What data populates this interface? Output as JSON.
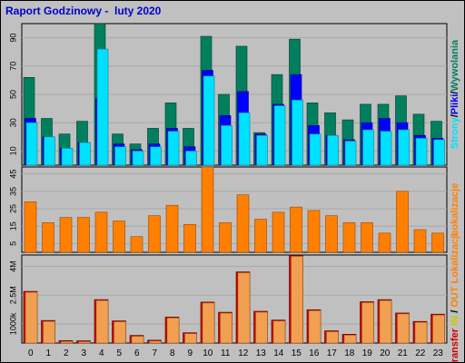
{
  "title": "Raport Godzinowy -  luty 2020",
  "colors": {
    "background": "#c0c0c0",
    "plot_bg": "#c0c0c0",
    "grid": "#a8a8a8",
    "strony": "#007f5f",
    "pliki": "#0000ff",
    "wywolania": "#00e0ff",
    "lokalizacje": "#ff8000",
    "transfer": "#cc0000",
    "transfer_light": "#f0a050",
    "title": "#0000cc"
  },
  "chart_data": [
    {
      "type": "bar",
      "categories": [
        "0",
        "1",
        "2",
        "3",
        "4",
        "5",
        "6",
        "7",
        "8",
        "9",
        "10",
        "11",
        "12",
        "13",
        "14",
        "15",
        "16",
        "17",
        "18",
        "19",
        "20",
        "21",
        "22",
        "23"
      ],
      "yticks": [
        10,
        30,
        50,
        70,
        90
      ],
      "ylim": [
        0,
        100
      ],
      "side_label": [
        "Strony",
        "/",
        "Pliki",
        "/",
        "Wywolania"
      ],
      "series": [
        {
          "name": "Strony",
          "values": [
            62,
            33,
            22,
            31,
            100,
            22,
            15,
            26,
            44,
            26,
            91,
            50,
            84,
            23,
            64,
            89,
            44,
            37,
            32,
            43,
            43,
            49,
            36,
            31
          ]
        },
        {
          "name": "Pliki",
          "values": [
            33,
            20,
            12,
            16,
            47,
            15,
            11,
            15,
            26,
            13,
            67,
            35,
            52,
            22,
            43,
            64,
            28,
            21,
            18,
            30,
            33,
            30,
            21,
            19
          ]
        },
        {
          "name": "Wywolania",
          "values": [
            30,
            20,
            12,
            16,
            82,
            13,
            10,
            13,
            24,
            10,
            63,
            28,
            37,
            21,
            42,
            46,
            22,
            21,
            17,
            25,
            24,
            25,
            19,
            18
          ]
        }
      ]
    },
    {
      "type": "bar",
      "categories": [
        "0",
        "1",
        "2",
        "3",
        "4",
        "5",
        "6",
        "7",
        "8",
        "9",
        "10",
        "11",
        "12",
        "13",
        "14",
        "15",
        "16",
        "17",
        "18",
        "19",
        "20",
        "21",
        "22",
        "23"
      ],
      "yticks": [
        5,
        15,
        25,
        35,
        45
      ],
      "ylim": [
        0,
        49
      ],
      "side_label": [
        "Lokalizacje"
      ],
      "series": [
        {
          "name": "Lokalizacje",
          "values": [
            29,
            17,
            20,
            20,
            23,
            18,
            9,
            21,
            27,
            16,
            49,
            17,
            33,
            19,
            23,
            26,
            24,
            21,
            17,
            17,
            11,
            35,
            13,
            11
          ]
        }
      ]
    },
    {
      "type": "bar",
      "categories": [
        "0",
        "1",
        "2",
        "3",
        "4",
        "5",
        "6",
        "7",
        "8",
        "9",
        "10",
        "11",
        "12",
        "13",
        "14",
        "15",
        "16",
        "17",
        "18",
        "19",
        "20",
        "21",
        "22",
        "23"
      ],
      "yticks": [
        {
          "value": 1000,
          "label": "1000k"
        },
        {
          "value": 2500,
          "label": "2.5M"
        },
        {
          "value": 4000,
          "label": "4M"
        }
      ],
      "ylim": [
        0,
        4600
      ],
      "side_label": [
        "Transfer",
        " ",
        "IN",
        " / ",
        "OUT",
        " ",
        "Lokalizacje"
      ],
      "series": [
        {
          "name": "Transfer",
          "values": [
            2700,
            1180,
            130,
            120,
            2270,
            1160,
            400,
            150,
            1360,
            540,
            2140,
            1610,
            3720,
            1660,
            1200,
            4580,
            1740,
            640,
            460,
            2160,
            2270,
            1570,
            1130,
            1510
          ]
        }
      ]
    }
  ]
}
